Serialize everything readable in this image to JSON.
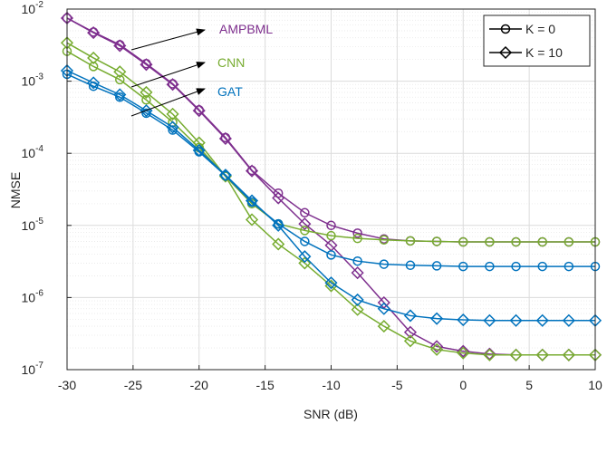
{
  "chart_data": {
    "type": "line",
    "log_y": true,
    "grid": true,
    "minor_grid": true,
    "xlabel": "SNR (dB)",
    "ylabel": "NMSE",
    "x": [
      -30,
      -28,
      -26,
      -24,
      -22,
      -20,
      -18,
      -16,
      -14,
      -12,
      -10,
      -8,
      -6,
      -4,
      -2,
      0,
      2,
      4,
      6,
      8,
      10
    ],
    "xlim": [
      -30,
      10
    ],
    "xticks": [
      -30,
      -25,
      -20,
      -15,
      -10,
      -5,
      0,
      5,
      10
    ],
    "ylim": [
      1e-07,
      0.01
    ],
    "yticks": [
      {
        "value": 1e-07,
        "label": "10",
        "exponent": "-7"
      },
      {
        "value": 1e-06,
        "label": "10",
        "exponent": "-6"
      },
      {
        "value": 1e-05,
        "label": "10",
        "exponent": "-5"
      },
      {
        "value": 0.0001,
        "label": "10",
        "exponent": "-4"
      },
      {
        "value": 0.001,
        "label": "10",
        "exponent": "-3"
      },
      {
        "value": 0.01,
        "label": "10",
        "exponent": "-2"
      }
    ],
    "legend_position": "upper right",
    "legend": [
      {
        "label": "K = 0",
        "marker": "circle",
        "color": "#000000"
      },
      {
        "label": "K = 10",
        "marker": "diamond",
        "color": "#000000"
      }
    ],
    "series": [
      {
        "name": "AMPBML",
        "marker": "circle",
        "color": "#7e2f8e",
        "values": [
          0.0075,
          0.0048,
          0.0032,
          0.00175,
          0.00092,
          0.0004,
          0.000165,
          5.8e-05,
          2.8e-05,
          1.5e-05,
          1e-05,
          7.8e-06,
          6.5e-06,
          6.1e-06,
          6e-06,
          5.9e-06,
          5.9e-06,
          5.9e-06,
          5.9e-06,
          5.9e-06,
          5.9e-06
        ]
      },
      {
        "name": "AMPBML",
        "marker": "diamond",
        "color": "#7e2f8e",
        "values": [
          0.0075,
          0.0047,
          0.0031,
          0.0017,
          0.0009,
          0.00039,
          0.00016,
          5.7e-05,
          2.4e-05,
          1.05e-05,
          5.3e-06,
          2.2e-06,
          8.5e-07,
          3.3e-07,
          2.1e-07,
          1.8e-07,
          1.65e-07,
          1.6e-07,
          1.6e-07,
          1.6e-07,
          1.6e-07
        ]
      },
      {
        "name": "CNN",
        "marker": "circle",
        "color": "#77ac30",
        "values": [
          0.0026,
          0.0016,
          0.00105,
          0.00055,
          0.00027,
          0.00012,
          4.8e-05,
          2e-05,
          1.05e-05,
          8.5e-06,
          7.2e-06,
          6.6e-06,
          6.3e-06,
          6.1e-06,
          6e-06,
          5.9e-06,
          5.9e-06,
          5.9e-06,
          5.9e-06,
          5.9e-06,
          5.9e-06
        ]
      },
      {
        "name": "CNN",
        "marker": "diamond",
        "color": "#77ac30",
        "values": [
          0.0034,
          0.0021,
          0.00135,
          0.0007,
          0.00035,
          0.00014,
          4.8e-05,
          1.2e-05,
          5.5e-06,
          3e-06,
          1.45e-06,
          6.8e-07,
          4e-07,
          2.5e-07,
          1.9e-07,
          1.7e-07,
          1.6e-07,
          1.6e-07,
          1.6e-07,
          1.6e-07,
          1.6e-07
        ]
      },
      {
        "name": "GAT",
        "marker": "circle",
        "color": "#0072bd",
        "values": [
          0.00125,
          0.00085,
          0.0006,
          0.00036,
          0.00021,
          0.000105,
          4.9e-05,
          2.1e-05,
          1.05e-05,
          6e-06,
          3.9e-06,
          3.2e-06,
          2.9e-06,
          2.8e-06,
          2.75e-06,
          2.7e-06,
          2.7e-06,
          2.7e-06,
          2.7e-06,
          2.7e-06,
          2.7e-06
        ]
      },
      {
        "name": "GAT",
        "marker": "diamond",
        "color": "#0072bd",
        "values": [
          0.0014,
          0.00095,
          0.00065,
          0.00039,
          0.00023,
          0.00011,
          5e-05,
          2.2e-05,
          1e-05,
          3.7e-06,
          1.6e-06,
          9.3e-07,
          7e-07,
          5.6e-07,
          5.1e-07,
          4.9e-07,
          4.8e-07,
          4.8e-07,
          4.8e-07,
          4.8e-07,
          4.8e-07
        ]
      }
    ]
  }
}
